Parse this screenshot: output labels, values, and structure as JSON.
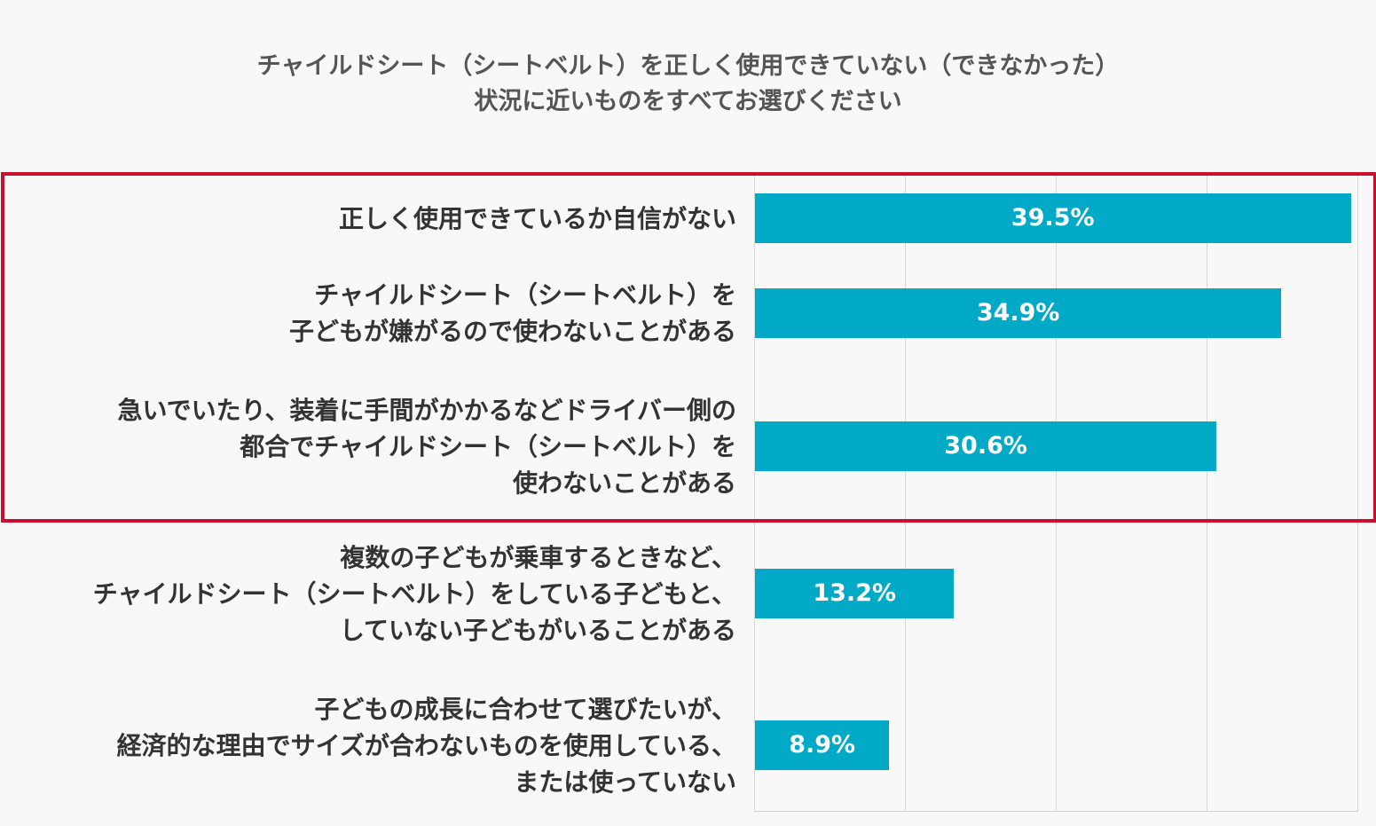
{
  "chart_data": {
    "type": "bar",
    "orientation": "horizontal",
    "title": [
      "チャイルドシート（シートベルト）を正しく使用できていない（できなかった）",
      "状況に近いものをすべてお選びください"
    ],
    "categories": [
      [
        "正しく使用できているか自信がない"
      ],
      [
        "チャイルドシート（シートベルト）を",
        "子どもが嫌がるので使わないことがある"
      ],
      [
        "急いでいたり、装着に手間がかかるなどドライバー側の",
        "都合でチャイルドシート（シートベルト）を",
        "使わないことがある"
      ],
      [
        "複数の子どもが乗車するときなど、",
        "チャイルドシート（シートベルト）をしている子どもと、",
        "していない子どもがいることがある"
      ],
      [
        "子どもの成長に合わせて選びたいが、",
        "経済的な理由でサイズが合わないものを使用している、",
        "または使っていない"
      ]
    ],
    "values": [
      39.5,
      34.9,
      30.6,
      13.2,
      8.9
    ],
    "data_labels": [
      "39.5%",
      "34.9%",
      "30.6%",
      "13.2%",
      "8.9%"
    ],
    "xlim": [
      0,
      40
    ],
    "grid": true,
    "highlighted_categories": [
      0,
      1,
      2
    ],
    "colors": {
      "bar": "#00a9c5",
      "highlight": "#c8102e",
      "background": "#f8f8f8"
    }
  }
}
